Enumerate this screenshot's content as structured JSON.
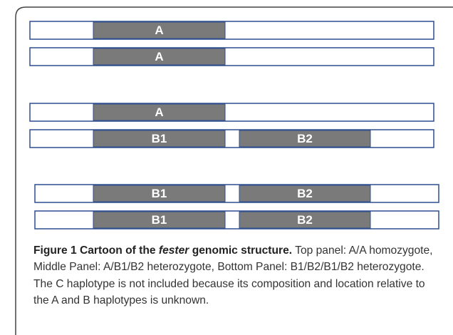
{
  "figure": {
    "rows": [
      {
        "segments": [
          "A"
        ]
      },
      {
        "segments": [
          "A"
        ]
      },
      {
        "segments": [
          "A"
        ]
      },
      {
        "segments": [
          "B1",
          "B2"
        ]
      },
      {
        "segments": [
          "B1",
          "B2"
        ]
      },
      {
        "segments": [
          "B1",
          "B2"
        ]
      }
    ],
    "caption": {
      "label": "Figure 1",
      "title_start": "Cartoon of the",
      "title_gene": "fester",
      "title_end": "genomic structure.",
      "text": "Top panel: A/A homozygote, Middle Panel: A/B1/B2 heterozygote, Bottom Panel: B1/B2/B1/B2 heterozygote. The C haplotype is not included because its composition and location relative to the A and B haplotypes is unknown."
    }
  }
}
